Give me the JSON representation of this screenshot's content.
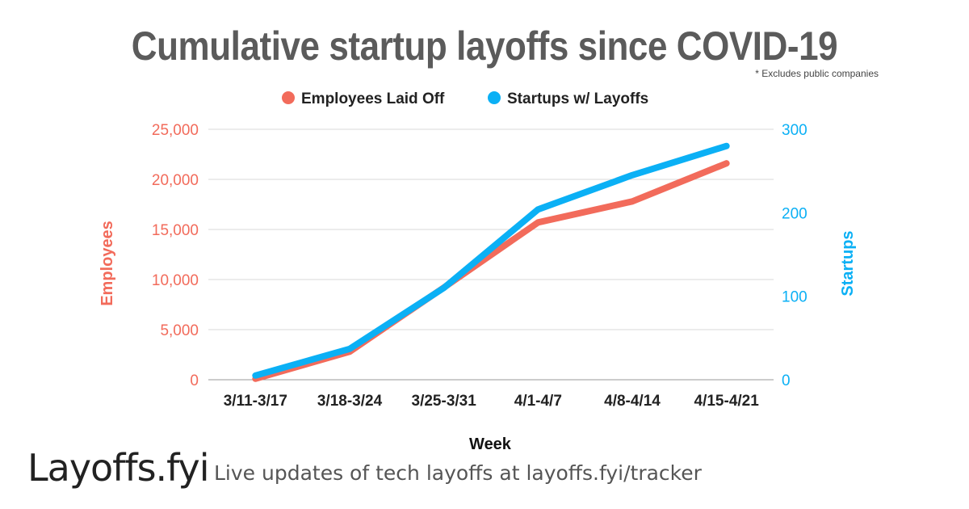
{
  "header": {
    "title": "Cumulative startup layoffs since COVID-19",
    "footnote": "* Excludes public companies"
  },
  "footer": {
    "brand": "Layoffs.fyi",
    "tagline": "Live updates of tech layoffs at layoffs.fyi/tracker"
  },
  "chart_data": {
    "type": "line",
    "title": "Cumulative startup layoffs since COVID-19",
    "xlabel": "Week",
    "ylabel_left": "Employees",
    "ylabel_right": "Startups",
    "categories": [
      "3/11-3/17",
      "3/18-3/24",
      "3/25-3/31",
      "4/1-4/7",
      "4/8-4/14",
      "4/15-4/21"
    ],
    "ylim_left": [
      0,
      25000
    ],
    "yticks_left": [
      "0",
      "5,000",
      "10,000",
      "15,000",
      "20,000",
      "25,000"
    ],
    "ylim_right": [
      0,
      300
    ],
    "yticks_right": [
      "0",
      "100",
      "200",
      "300"
    ],
    "grid": true,
    "legend_position": "top",
    "series": [
      {
        "name": "Employees Laid Off",
        "axis": "left",
        "color": "#f26b5b",
        "values": [
          100,
          2800,
          9200,
          15700,
          17800,
          21600
        ]
      },
      {
        "name": "Startups w/ Layoffs",
        "axis": "right",
        "color": "#0bb0f5",
        "values": [
          5,
          37,
          110,
          204,
          245,
          280
        ]
      }
    ]
  }
}
